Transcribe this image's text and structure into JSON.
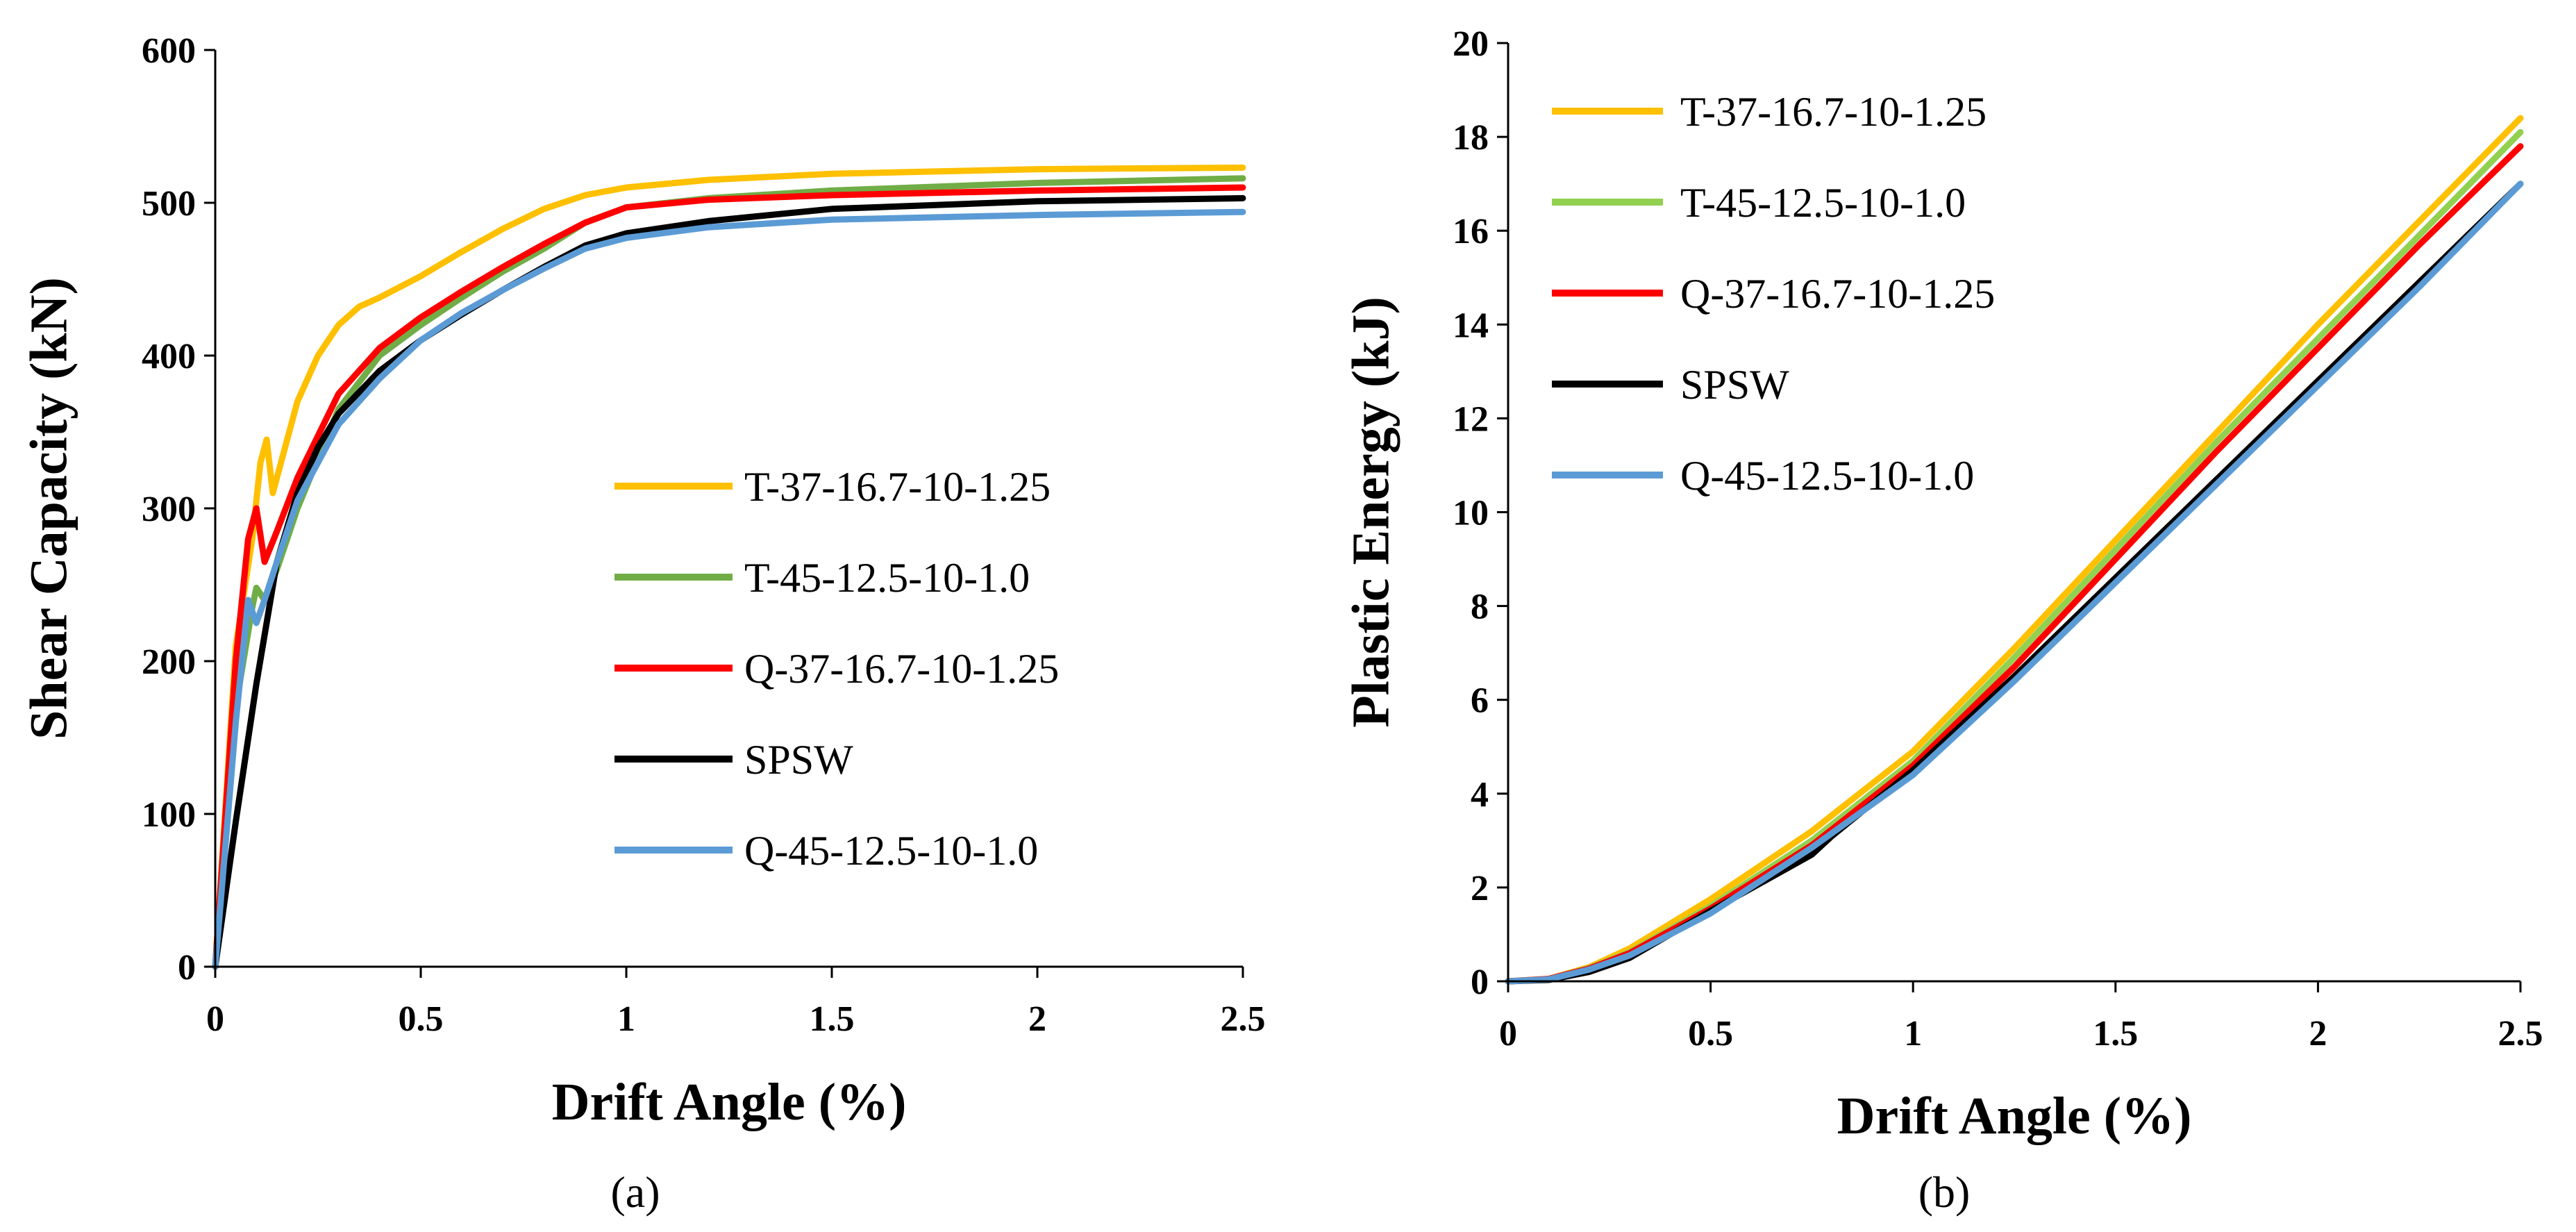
{
  "chart_data": [
    {
      "type": "line",
      "panel_label": "(a)",
      "xlabel": "Drift Angle (%)",
      "ylabel": "Shear Capacity (kN)",
      "xlim": [
        0,
        2.5
      ],
      "ylim": [
        0,
        600
      ],
      "xticks": [
        "0",
        "0.5",
        "1",
        "1.5",
        "2",
        "2.5"
      ],
      "yticks": [
        "0",
        "100",
        "200",
        "300",
        "400",
        "500",
        "600"
      ],
      "grid": false,
      "legend_position": "center-right",
      "series": [
        {
          "name": "T-37-16.7-10-1.25",
          "color": "#FFC000",
          "x": [
            0,
            0.05,
            0.09,
            0.11,
            0.125,
            0.14,
            0.16,
            0.2,
            0.25,
            0.3,
            0.35,
            0.4,
            0.5,
            0.6,
            0.7,
            0.8,
            0.9,
            1.0,
            1.2,
            1.5,
            2.0,
            2.5
          ],
          "y": [
            0,
            210,
            280,
            330,
            345,
            310,
            330,
            370,
            400,
            420,
            432,
            438,
            452,
            468,
            483,
            496,
            505,
            510,
            515,
            519,
            522,
            523
          ]
        },
        {
          "name": "T-45-12.5-10-1.0",
          "color": "#70AD47",
          "x": [
            0,
            0.05,
            0.09,
            0.1,
            0.12,
            0.15,
            0.2,
            0.3,
            0.4,
            0.5,
            0.6,
            0.7,
            0.8,
            0.9,
            1.0,
            1.2,
            1.5,
            2.0,
            2.5
          ],
          "y": [
            0,
            170,
            235,
            248,
            240,
            260,
            300,
            365,
            400,
            420,
            438,
            455,
            470,
            487,
            497,
            503,
            508,
            513,
            516
          ]
        },
        {
          "name": "Q-37-16.7-10-1.25",
          "color": "#FF0000",
          "x": [
            0,
            0.05,
            0.08,
            0.1,
            0.12,
            0.15,
            0.2,
            0.3,
            0.4,
            0.5,
            0.6,
            0.7,
            0.8,
            0.9,
            1.0,
            1.2,
            1.5,
            2.0,
            2.5
          ],
          "y": [
            0,
            200,
            280,
            300,
            265,
            285,
            320,
            375,
            405,
            425,
            442,
            458,
            473,
            487,
            497,
            502,
            505,
            508,
            510
          ]
        },
        {
          "name": "SPSW",
          "color": "#000000",
          "x": [
            0,
            0.05,
            0.1,
            0.15,
            0.2,
            0.25,
            0.3,
            0.4,
            0.5,
            0.6,
            0.7,
            0.8,
            0.9,
            1.0,
            1.2,
            1.5,
            2.0,
            2.5
          ],
          "y": [
            0,
            95,
            185,
            265,
            310,
            340,
            362,
            390,
            410,
            427,
            443,
            458,
            472,
            480,
            488,
            496,
            501,
            503
          ]
        },
        {
          "name": "Q-45-12.5-10-1.0",
          "color": "#5B9BD5",
          "x": [
            0,
            0.05,
            0.08,
            0.1,
            0.12,
            0.15,
            0.2,
            0.3,
            0.4,
            0.5,
            0.6,
            0.7,
            0.8,
            0.9,
            1.0,
            1.2,
            1.5,
            2.0,
            2.5
          ],
          "y": [
            0,
            160,
            240,
            225,
            240,
            265,
            305,
            355,
            385,
            410,
            428,
            443,
            457,
            470,
            477,
            484,
            489,
            492,
            494
          ]
        }
      ]
    },
    {
      "type": "line",
      "panel_label": "(b)",
      "xlabel": "Drift Angle (%)",
      "ylabel": "Plastic Energy (kJ)",
      "xlim": [
        0,
        2.5
      ],
      "ylim": [
        0,
        20
      ],
      "xticks": [
        "0",
        "0.5",
        "1",
        "1.5",
        "2",
        "2.5"
      ],
      "yticks": [
        "0",
        "2",
        "4",
        "6",
        "8",
        "10",
        "12",
        "14",
        "16",
        "18",
        "20"
      ],
      "grid": false,
      "legend_position": "top-left",
      "series": [
        {
          "name": "T-37-16.7-10-1.25",
          "color": "#FFC000",
          "x": [
            0,
            0.1,
            0.2,
            0.3,
            0.5,
            0.75,
            1.0,
            1.25,
            1.5,
            1.75,
            2.0,
            2.25,
            2.5
          ],
          "y": [
            0,
            0.05,
            0.3,
            0.7,
            1.75,
            3.2,
            4.9,
            7.1,
            9.4,
            11.7,
            14.0,
            16.2,
            18.4
          ]
        },
        {
          "name": "T-45-12.5-10-1.0",
          "color": "#92D050",
          "x": [
            0,
            0.1,
            0.2,
            0.3,
            0.5,
            0.75,
            1.0,
            1.25,
            1.5,
            1.75,
            2.0,
            2.25,
            2.5
          ],
          "y": [
            0,
            0.05,
            0.28,
            0.62,
            1.6,
            3.0,
            4.7,
            6.9,
            9.2,
            11.5,
            13.7,
            15.9,
            18.1
          ]
        },
        {
          "name": "Q-37-16.7-10-1.25",
          "color": "#FF0000",
          "x": [
            0,
            0.1,
            0.2,
            0.3,
            0.5,
            0.75,
            1.0,
            1.25,
            1.5,
            1.75,
            2.0,
            2.25,
            2.5
          ],
          "y": [
            0,
            0.05,
            0.27,
            0.6,
            1.55,
            2.9,
            4.6,
            6.7,
            9.0,
            11.3,
            13.5,
            15.7,
            17.8
          ]
        },
        {
          "name": "SPSW",
          "color": "#000000",
          "x": [
            0,
            0.1,
            0.2,
            0.3,
            0.5,
            0.75,
            0.8,
            1.0,
            1.25,
            1.5,
            1.75,
            2.0,
            2.25,
            2.5
          ],
          "y": [
            0,
            0.03,
            0.2,
            0.5,
            1.5,
            2.7,
            3.1,
            4.5,
            6.5,
            8.6,
            10.7,
            12.8,
            14.9,
            17.0
          ]
        },
        {
          "name": "Q-45-12.5-10-1.0",
          "color": "#5B9BD5",
          "x": [
            0,
            0.1,
            0.2,
            0.3,
            0.5,
            0.75,
            1.0,
            1.25,
            1.5,
            1.75,
            2.0,
            2.25,
            2.5
          ],
          "y": [
            0,
            0.04,
            0.25,
            0.55,
            1.45,
            2.85,
            4.4,
            6.4,
            8.5,
            10.6,
            12.7,
            14.8,
            17.0
          ]
        }
      ]
    }
  ]
}
